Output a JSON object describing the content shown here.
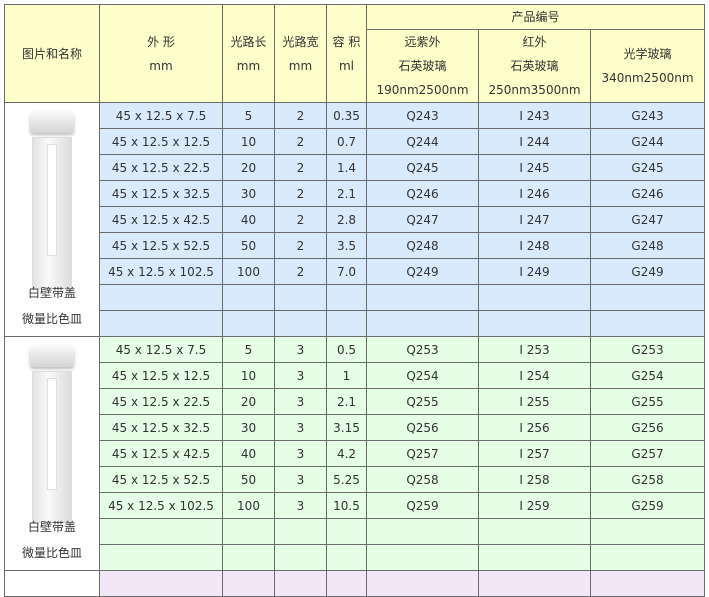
{
  "header": {
    "name_col": "图片和名称",
    "shape": [
      "外 形",
      "mm"
    ],
    "path_len": [
      "光路长",
      "mm"
    ],
    "path_width": [
      "光路宽",
      "mm"
    ],
    "volume": [
      "容 积",
      "ml"
    ],
    "product_code": "产品编号",
    "quartz_uv": [
      "远紫外",
      "石英玻璃",
      "190nm2500nm"
    ],
    "ir": [
      "红外",
      "石英玻璃",
      "250nm3500nm"
    ],
    "optical_glass": [
      "光学玻璃",
      "340nm2500nm"
    ]
  },
  "groups": [
    {
      "name": [
        "白壁带盖",
        "微量比色皿"
      ],
      "icon": "cuvette-with-lid-image",
      "color": "#d9eafc",
      "rows": [
        [
          "45 x 12.5 x 7.5",
          "5",
          "2",
          "0.35",
          "Q243",
          "I 243",
          "G243"
        ],
        [
          "45 x 12.5 x 12.5",
          "10",
          "2",
          "0.7",
          "Q244",
          "I 244",
          "G244"
        ],
        [
          "45 x 12.5 x 22.5",
          "20",
          "2",
          "1.4",
          "Q245",
          "I 245",
          "G245"
        ],
        [
          "45 x 12.5 x 32.5",
          "30",
          "2",
          "2.1",
          "Q246",
          "I 246",
          "G246"
        ],
        [
          "45 x 12.5 x 42.5",
          "40",
          "2",
          "2.8",
          "Q247",
          "I 247",
          "G247"
        ],
        [
          "45 x 12.5 x 52.5",
          "50",
          "2",
          "3.5",
          "Q248",
          "I 248",
          "G248"
        ],
        [
          "45 x 12.5 x 102.5",
          "100",
          "2",
          "7.0",
          "Q249",
          "I 249",
          "G249"
        ]
      ]
    },
    {
      "name": [
        "白壁带盖",
        "微量比色皿"
      ],
      "icon": "cuvette-with-lid-image",
      "color": "#e6fde6",
      "rows": [
        [
          "45 x 12.5 x 7.5",
          "5",
          "3",
          "0.5",
          "Q253",
          "I 253",
          "G253"
        ],
        [
          "45 x 12.5 x 12.5",
          "10",
          "3",
          "1",
          "Q254",
          "I 254",
          "G254"
        ],
        [
          "45 x 12.5 x 22.5",
          "20",
          "3",
          "2.1",
          "Q255",
          "I 255",
          "G255"
        ],
        [
          "45 x 12.5 x 32.5",
          "30",
          "3",
          "3.15",
          "Q256",
          "I 256",
          "G256"
        ],
        [
          "45 x 12.5 x 42.5",
          "40",
          "3",
          "4.2",
          "Q257",
          "I 257",
          "G257"
        ],
        [
          "45 x 12.5 x 52.5",
          "50",
          "3",
          "5.25",
          "Q258",
          "I 258",
          "G258"
        ],
        [
          "45 x 12.5 x 102.5",
          "100",
          "3",
          "10.5",
          "Q259",
          "I 259",
          "G259"
        ]
      ]
    }
  ]
}
